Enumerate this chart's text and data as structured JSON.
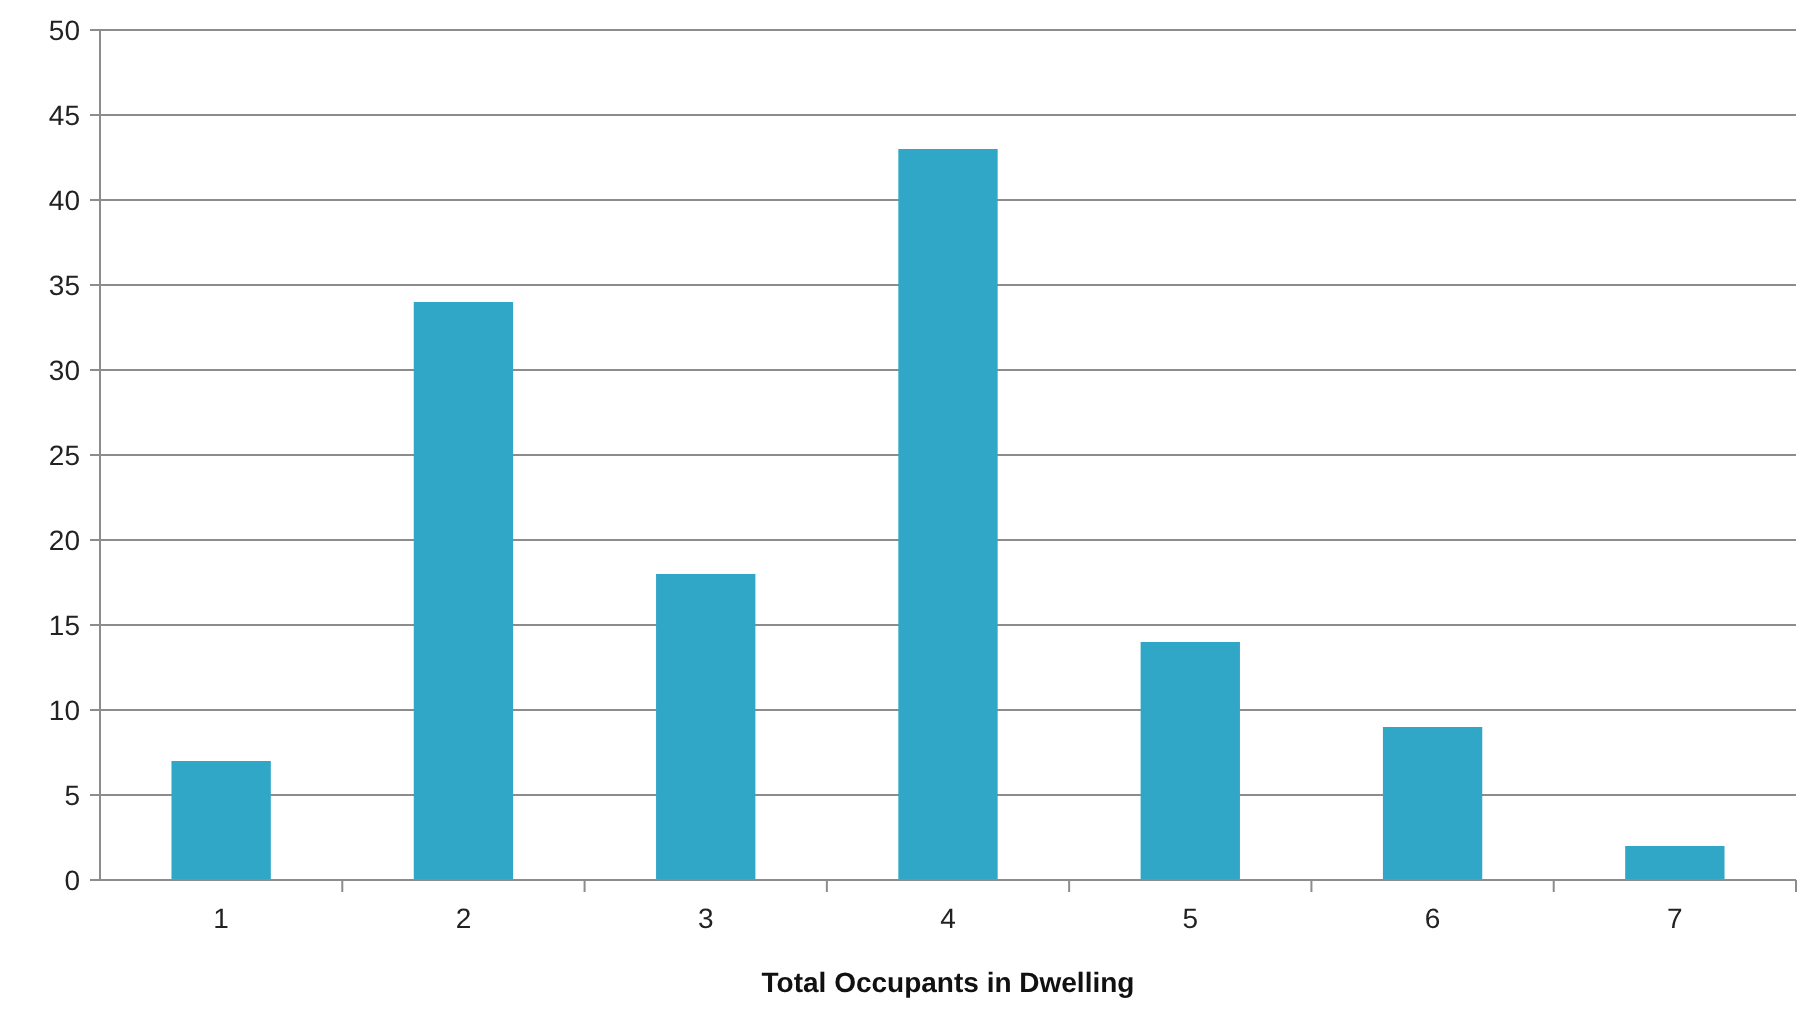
{
  "chart_data": {
    "type": "bar",
    "xlabel": "Total Occupants in Dwelling",
    "categories": [
      "1",
      "2",
      "3",
      "4",
      "5",
      "6",
      "7"
    ],
    "values": [
      7,
      34,
      18,
      43,
      14,
      9,
      2
    ],
    "color": "#31a7c8",
    "ylim": [
      0,
      50
    ],
    "yticks": [
      0,
      5,
      10,
      15,
      20,
      25,
      30,
      35,
      40,
      45,
      50
    ],
    "grid": "y"
  }
}
